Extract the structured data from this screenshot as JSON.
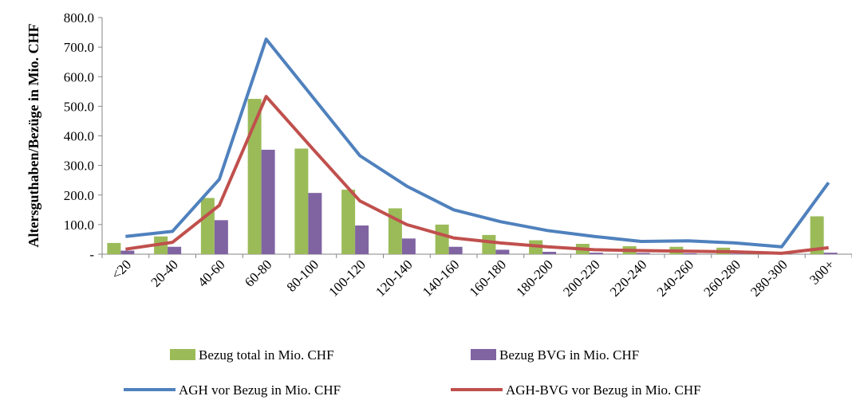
{
  "chart_data": {
    "type": "bar_line",
    "y_label": "Altersguthaben/Bezüge in Mio. CHF",
    "categories": [
      "<20",
      "20-40",
      "40-60",
      "60-80",
      "80-100",
      "100-120",
      "120-140",
      "140-160",
      "160-180",
      "180-200",
      "200-220",
      "220-240",
      "240-260",
      "260-280",
      "280-300",
      "300+"
    ],
    "ylim": [
      0,
      800
    ],
    "yticks": [
      {
        "value": 0,
        "label": "-"
      },
      {
        "value": 100,
        "label": "100.0"
      },
      {
        "value": 200,
        "label": "200.0"
      },
      {
        "value": 300,
        "label": "300.0"
      },
      {
        "value": 400,
        "label": "400.0"
      },
      {
        "value": 500,
        "label": "500.0"
      },
      {
        "value": 600,
        "label": "600.0"
      },
      {
        "value": 700,
        "label": "700.0"
      },
      {
        "value": 800,
        "label": "800.0"
      }
    ],
    "grid": false,
    "series": [
      {
        "name": "Bezug total in Mio. CHF",
        "kind": "bar",
        "color": "#9bbb59",
        "values": [
          38,
          60,
          190,
          525,
          357,
          218,
          155,
          100,
          65,
          47,
          35,
          27,
          25,
          22,
          5,
          128
        ]
      },
      {
        "name": "Bezug BVG in Mio. CHF",
        "kind": "bar",
        "color": "#8064a2",
        "values": [
          12,
          25,
          115,
          353,
          207,
          97,
          53,
          25,
          15,
          8,
          5,
          4,
          3,
          2,
          1,
          5
        ]
      },
      {
        "name": "AGH vor Bezug in Mio. CHF",
        "kind": "line",
        "color": "#4f81bd",
        "values": [
          60,
          77,
          253,
          727,
          530,
          333,
          230,
          150,
          110,
          80,
          60,
          43,
          45,
          38,
          25,
          242
        ]
      },
      {
        "name": "AGH-BVG vor Bezug in Mio. CHF",
        "kind": "line",
        "color": "#c0504d",
        "values": [
          17,
          40,
          165,
          533,
          355,
          180,
          100,
          55,
          38,
          25,
          15,
          12,
          10,
          8,
          3,
          22
        ]
      }
    ]
  }
}
